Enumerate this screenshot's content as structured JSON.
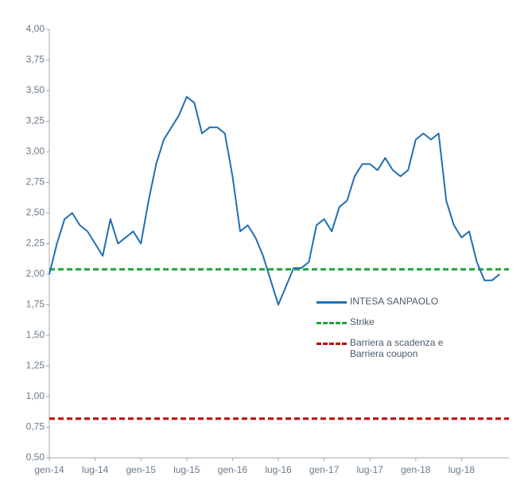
{
  "chart_data": {
    "type": "line",
    "categories": [
      "gen-14",
      null,
      null,
      null,
      null,
      null,
      "lug-14",
      null,
      null,
      null,
      null,
      null,
      "gen-15",
      null,
      null,
      null,
      null,
      null,
      "lug-15",
      null,
      null,
      null,
      null,
      null,
      "gen-16",
      null,
      null,
      null,
      null,
      null,
      "lug-16",
      null,
      null,
      null,
      null,
      null,
      "gen-17",
      null,
      null,
      null,
      null,
      null,
      "lug-17",
      null,
      null,
      null,
      null,
      null,
      "gen-18",
      null,
      null,
      null,
      null,
      null,
      "lug-18",
      null,
      null,
      null,
      null,
      null
    ],
    "series": [
      {
        "name": "INTESA SANPAOLO",
        "color": "#1f6fb5",
        "values": [
          2.0,
          2.25,
          2.45,
          2.5,
          2.4,
          2.35,
          2.25,
          2.15,
          2.45,
          2.25,
          2.3,
          2.35,
          2.25,
          2.6,
          2.9,
          3.1,
          3.2,
          3.3,
          3.45,
          3.4,
          3.15,
          3.2,
          3.2,
          3.15,
          2.8,
          2.35,
          2.4,
          2.3,
          2.15,
          1.95,
          1.75,
          1.9,
          2.05,
          2.05,
          2.1,
          2.4,
          2.45,
          2.35,
          2.55,
          2.6,
          2.8,
          2.9,
          2.9,
          2.85,
          2.95,
          2.85,
          2.8,
          2.85,
          3.1,
          3.15,
          3.1,
          3.15,
          2.6,
          2.4,
          2.3,
          2.35,
          2.1,
          1.95,
          1.95,
          2.0
        ]
      }
    ],
    "reference_lines": [
      {
        "name": "Strike",
        "color": "#1aa33c",
        "value": 2.04
      },
      {
        "name": "Barriera a scadenza e Barriera coupon",
        "color": "#c00000",
        "value": 0.82
      }
    ],
    "ylim": [
      0.5,
      4.0
    ],
    "yticks": [
      {
        "value": 0.5,
        "label": "0,50"
      },
      {
        "value": 0.75,
        "label": "0,75"
      },
      {
        "value": 1.0,
        "label": "1,00"
      },
      {
        "value": 1.25,
        "label": "1,25"
      },
      {
        "value": 1.5,
        "label": "1,50"
      },
      {
        "value": 1.75,
        "label": "1,75"
      },
      {
        "value": 2.0,
        "label": "2,00"
      },
      {
        "value": 2.25,
        "label": "2,25"
      },
      {
        "value": 2.5,
        "label": "2,50"
      },
      {
        "value": 2.75,
        "label": "2,75"
      },
      {
        "value": 3.0,
        "label": "3,00"
      },
      {
        "value": 3.25,
        "label": "3,25"
      },
      {
        "value": 3.5,
        "label": "3,50"
      },
      {
        "value": 3.75,
        "label": "3,75"
      },
      {
        "value": 4.0,
        "label": "4,00"
      }
    ]
  }
}
